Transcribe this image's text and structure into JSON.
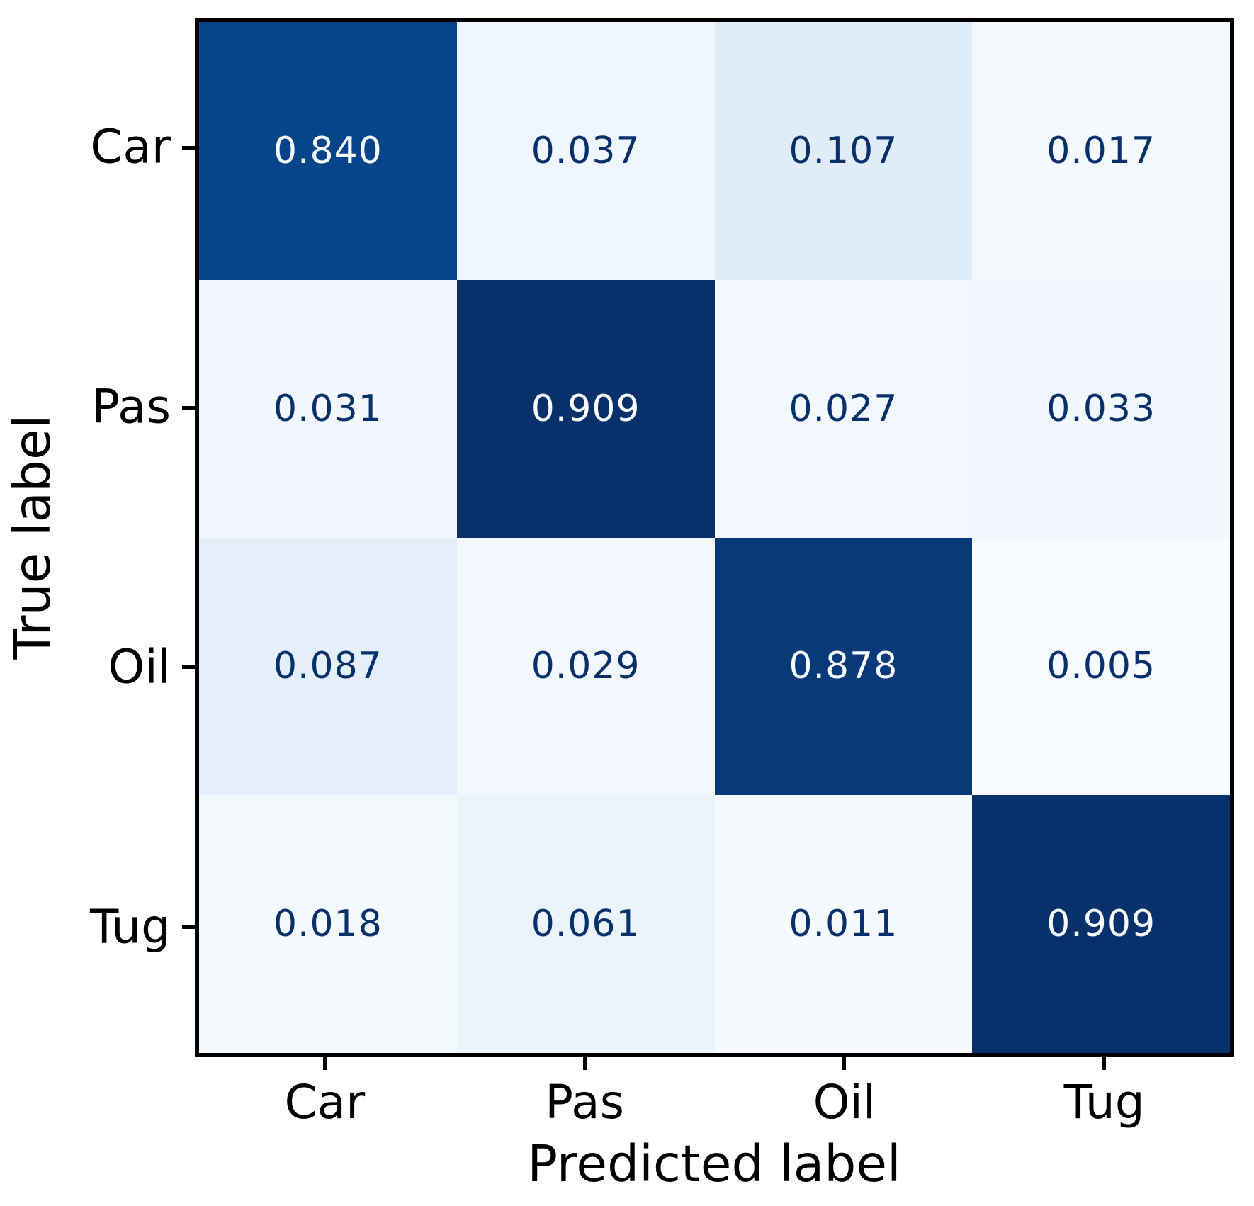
{
  "chart_data": {
    "type": "heatmap",
    "title": "",
    "xlabel": "Predicted label",
    "ylabel": "True label",
    "x_tick_labels": [
      "Car",
      "Pas",
      "Oil",
      "Tug"
    ],
    "y_tick_labels": [
      "Car",
      "Pas",
      "Oil",
      "Tug"
    ],
    "matrix": [
      [
        0.84,
        0.037,
        0.107,
        0.017
      ],
      [
        0.031,
        0.909,
        0.027,
        0.033
      ],
      [
        0.087,
        0.029,
        0.878,
        0.005
      ],
      [
        0.018,
        0.061,
        0.011,
        0.909
      ]
    ],
    "value_decimals": 3,
    "vmin": 0.005,
    "vmax": 0.909,
    "colormap": {
      "name": "Blues",
      "anchors": [
        "#f7fbff",
        "#deebf7",
        "#c6dbef",
        "#9ecae1",
        "#6baed6",
        "#4292c6",
        "#2171b5",
        "#08519c",
        "#08306b"
      ]
    },
    "text_color_on_light_cells": "#08306b",
    "text_color_on_dark_cells": "#f7fbff",
    "spine_color": "#000000",
    "tick_color": "#000000",
    "label_color": "#000000",
    "background_color": "#ffffff",
    "grid": false,
    "legend": "none"
  }
}
